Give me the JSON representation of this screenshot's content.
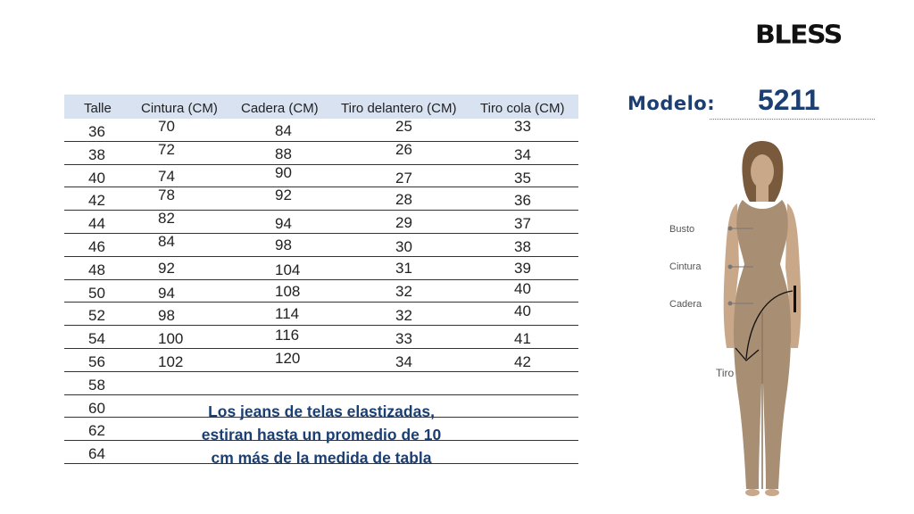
{
  "brand": "BLESS",
  "model": {
    "label": "Modelo:",
    "number": "5211"
  },
  "table": {
    "headers": [
      "Talle",
      "Cintura (CM)",
      "Cadera (CM)",
      "Tiro delantero (CM)",
      "Tiro cola (CM)"
    ],
    "rows": [
      [
        "36",
        "70",
        "84",
        "25",
        "33"
      ],
      [
        "38",
        "72",
        "88",
        "26",
        "34"
      ],
      [
        "40",
        "74",
        "90",
        "27",
        "35"
      ],
      [
        "42",
        "78",
        "92",
        "28",
        "36"
      ],
      [
        "44",
        "82",
        "94",
        "29",
        "37"
      ],
      [
        "46",
        "84",
        "98",
        "30",
        "38"
      ],
      [
        "48",
        "92",
        "104",
        "31",
        "39"
      ],
      [
        "50",
        "94",
        "108",
        "32",
        "40"
      ],
      [
        "52",
        "98",
        "114",
        "32",
        "40"
      ],
      [
        "54",
        "100",
        "116",
        "33",
        "41"
      ],
      [
        "56",
        "102",
        "120",
        "34",
        "42"
      ],
      [
        "58",
        "",
        "",
        "",
        ""
      ],
      [
        "60",
        "",
        "",
        "",
        ""
      ],
      [
        "62",
        "",
        "",
        "",
        ""
      ],
      [
        "64",
        "",
        "",
        "",
        ""
      ]
    ]
  },
  "note": {
    "line1": "Los jeans de telas elastizadas,",
    "line2": "estiran hasta un promedio de 10",
    "line3": "cm más de la medida de tabla"
  },
  "diagram": {
    "labels": {
      "busto": "Busto",
      "cintura": "Cintura",
      "cadera": "Cadera",
      "tiro": "Tiro"
    },
    "colors": {
      "body": "#a88e72",
      "shade": "#8f765c",
      "hair": "#7a5a3c",
      "skin": "#c9a88a"
    }
  }
}
